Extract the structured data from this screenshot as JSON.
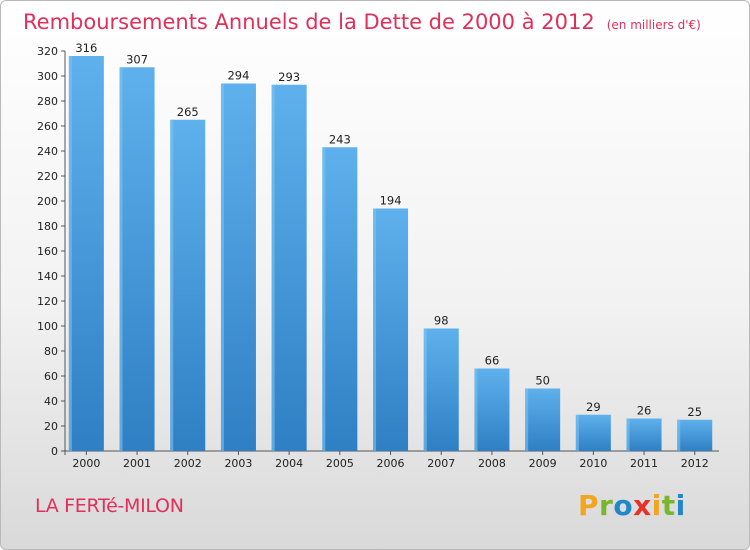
{
  "chart_data": {
    "type": "bar",
    "title": "Remboursements Annuels de la Dette de 2000 à 2012",
    "subtitle": "(en milliers d'€)",
    "categories": [
      "2000",
      "2001",
      "2002",
      "2003",
      "2004",
      "2005",
      "2006",
      "2007",
      "2008",
      "2009",
      "2010",
      "2011",
      "2012"
    ],
    "values": [
      316,
      307,
      265,
      294,
      293,
      243,
      194,
      98,
      66,
      50,
      29,
      26,
      25
    ],
    "ylim": [
      0,
      320
    ],
    "yticks": [
      0,
      20,
      40,
      60,
      80,
      100,
      120,
      140,
      160,
      180,
      200,
      220,
      240,
      260,
      280,
      300,
      320
    ],
    "grid": false,
    "legend": "none",
    "bar_color": "#3d8fd4"
  },
  "location_label": "LA FERTé-MILON",
  "logo_text": "Proxiti",
  "logo_colors": [
    "#f3a421",
    "#7ab62d",
    "#1e88c9",
    "#e5332a",
    "#f3a421",
    "#7ab62d",
    "#1e88c9"
  ]
}
